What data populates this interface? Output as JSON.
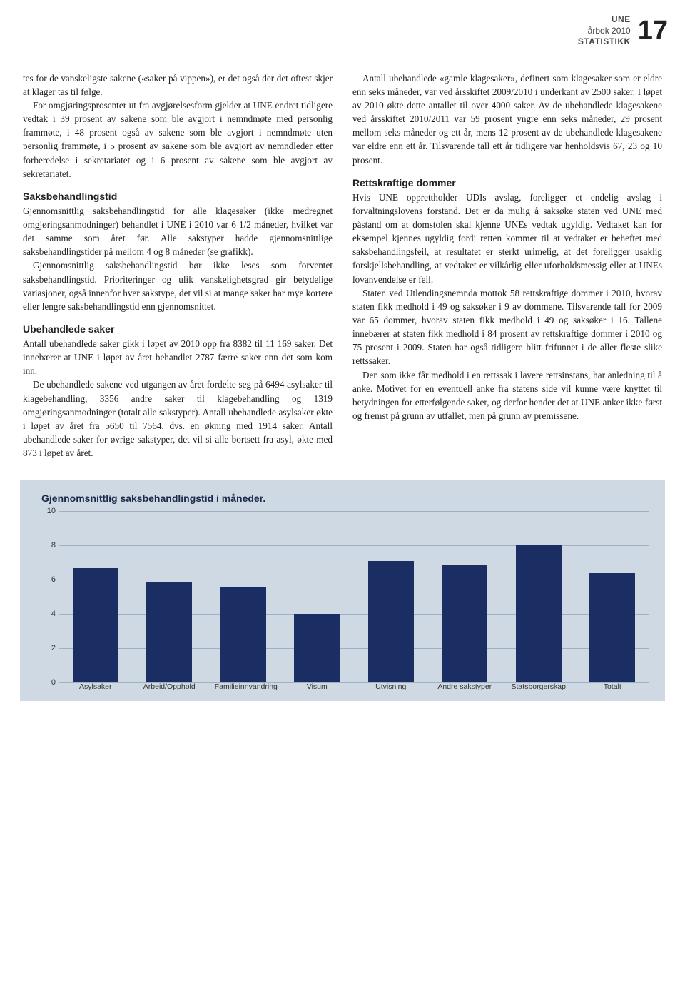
{
  "header": {
    "brand": "UNE",
    "year": "årbok 2010",
    "section": "STATISTIKK",
    "page": "17"
  },
  "colLeft": {
    "p1": "tes for de vanskeligste sakene («saker på vippen»), er det også der det oftest skjer at klager tas til følge.",
    "p2": "For omgjøringsprosenter ut fra avgjørelsesform gjelder at UNE endret tidligere vedtak i 39 prosent av sakene som ble avgjort i nemndmøte med personlig frammøte, i 48 prosent også av sakene som ble avgjort i nemndmøte uten personlig frammøte, i 5 prosent av sakene som ble avgjort av nemndleder etter forberedelse i sekretariatet og i 6 prosent av sakene som ble avgjort av sekretariatet.",
    "h2": "Saksbehandlingstid",
    "p3": "Gjennomsnittlig saksbehandlingstid for alle klagesaker (ikke medregnet omgjøringsanmodninger) behandlet i UNE i 2010 var 6 1/2 måneder, hvilket var det samme som året før. Alle sakstyper hadde gjennomsnittlige saksbehandlingstider på mellom 4 og 8 måneder (se grafikk).",
    "p4": "Gjennomsnittlig saksbehandlingstid bør ikke leses som forventet saksbehandlingstid. Prioriteringer og ulik vanskelighetsgrad gir betydelige variasjoner, også innenfor hver sakstype, det vil si at mange saker har mye kortere eller lengre saksbehandlingstid enn gjennomsnittet.",
    "h3": "Ubehandlede saker",
    "p5": "Antall ubehandlede saker gikk i løpet av 2010 opp fra 8382 til 11 169 saker. Det innebærer at UNE i løpet av året behandlet 2787 færre saker enn det som kom inn.",
    "p6": "De ubehandlede sakene ved utgangen av året fordelte seg på 6494 asylsaker til klagebehandling, 3356 andre saker til klagebehandling og 1319 omgjøringsanmodninger (totalt alle sakstyper). Antall ubehandlede asylsaker økte i løpet av året fra 5650 til 7564, dvs. en økning med 1914 saker. Antall ubehandlede saker for øvrige sakstyper, det vil si alle bortsett fra asyl, økte med 873 i løpet av året."
  },
  "colRight": {
    "p1": "Antall ubehandlede «gamle klagesaker», definert som klagesaker som er eldre enn seks måneder, var ved årsskiftet 2009/2010 i underkant av 2500 saker. I løpet av 2010 økte dette antallet til over 4000 saker. Av de ubehandlede klagesakene ved årsskiftet 2010/2011 var 59 prosent yngre enn seks måneder, 29 prosent mellom seks måneder og ett år, mens 12 prosent av de ubehandlede klagesakene var eldre enn ett år. Tilsvarende tall ett år tidligere var henholdsvis 67, 23 og 10 prosent.",
    "h2": "Rettskraftige dommer",
    "p2": "Hvis UNE opprettholder UDIs avslag, foreligger et endelig avslag i forvaltningslovens forstand. Det er da mulig å saksøke staten ved UNE med påstand om at domstolen skal kjenne UNEs vedtak ugyldig. Vedtaket kan for eksempel kjennes ugyldig fordi retten kommer til at vedtaket er beheftet med saksbehandlingsfeil, at resultatet er sterkt urimelig, at det foreligger usaklig forskjellsbehandling, at vedtaket er vilkårlig eller uforholdsmessig eller at UNEs lovanvendelse er feil.",
    "p3": "Staten ved Utlendingsnemnda mottok 58 rettskraftige dommer i 2010, hvorav staten fikk medhold i 49 og saksøker i 9 av dommene. Tilsvarende tall for 2009 var 65 dommer, hvorav staten fikk medhold i 49 og saksøker i 16. Tallene innebærer at staten fikk medhold i 84 prosent av rettskraftige dommer i 2010 og 75 prosent i 2009. Staten har også tidligere blitt frifunnet i de aller fleste slike rettssaker.",
    "p4": "Den som ikke får medhold i en rettssak i lavere rettsinstans, har anledning til å anke. Motivet for en eventuell anke fra statens side vil kunne være knyttet til betydningen for etterfølgende saker, og derfor hender det at UNE anker ikke først og fremst på grunn av utfallet, men på grunn av premissene."
  },
  "chart": {
    "title": "Gjennomsnittlig saksbehandlingstid i måneder.",
    "ymax": 10,
    "ytick_step": 2,
    "categories": [
      "Asylsaker",
      "Arbeid/Opphold",
      "Familieinnvandring",
      "Visum",
      "Utvisning",
      "Andre sakstyper",
      "Statsborgerskap",
      "Totalt"
    ],
    "values": [
      6.7,
      5.9,
      5.6,
      4.0,
      7.1,
      6.9,
      8.0,
      6.4
    ],
    "bar_color": "#1b2e63",
    "background_color": "#cfd9e3",
    "grid_color": "#9fb0c2"
  }
}
